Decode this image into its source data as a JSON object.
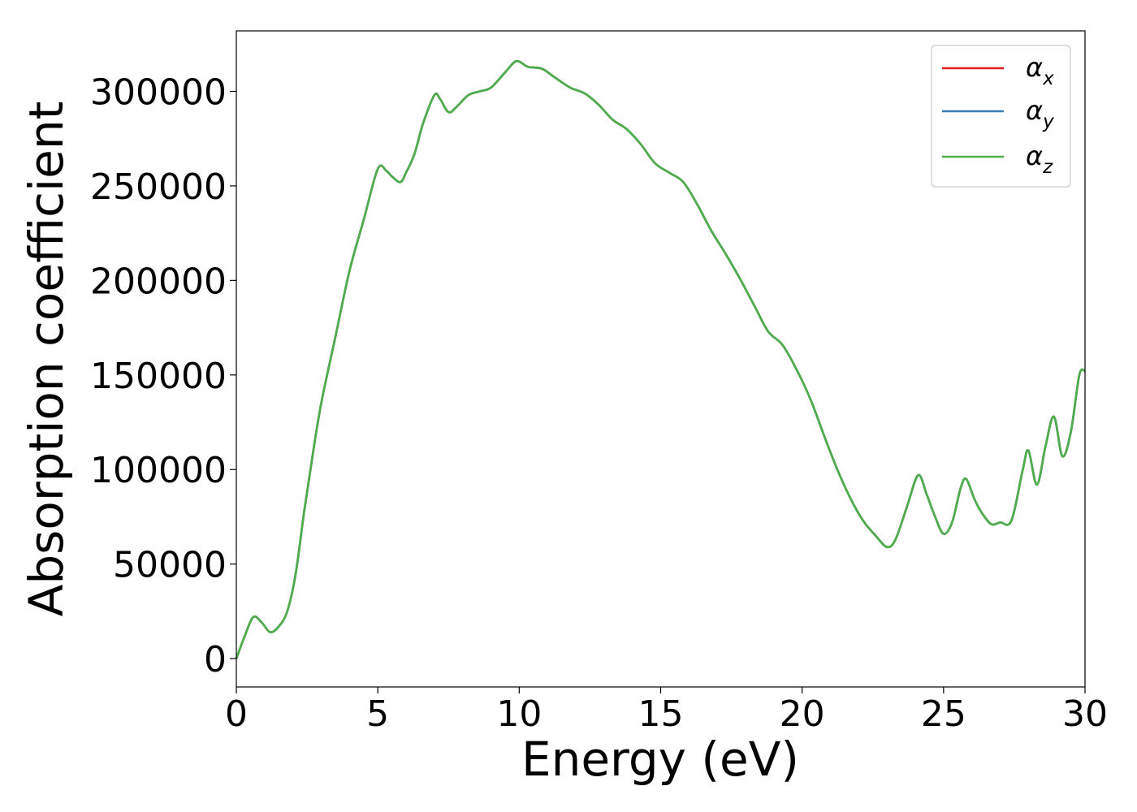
{
  "chart_data": {
    "type": "line",
    "title": "",
    "xlabel": "Energy (eV)",
    "ylabel": "Absorption coefficient",
    "xlim": [
      0,
      30
    ],
    "ylim": [
      -15000,
      332000
    ],
    "xticks": [
      0,
      5,
      10,
      15,
      20,
      25,
      30
    ],
    "yticks": [
      0,
      50000,
      100000,
      150000,
      200000,
      250000,
      300000
    ],
    "grid": false,
    "legend_position": "top-right",
    "series": [
      {
        "name": "αx",
        "legend": {
          "base": "α",
          "sub": "x"
        },
        "color": "#e41a1c",
        "x": [
          0,
          0.3,
          0.6,
          0.9,
          1.2,
          1.5,
          1.8,
          2.1,
          2.4,
          2.7,
          3.0,
          3.5,
          4.0,
          4.5,
          5.0,
          5.3,
          5.5,
          5.8,
          6.0,
          6.3,
          6.6,
          7.0,
          7.2,
          7.5,
          7.8,
          8.2,
          8.6,
          9.0,
          9.5,
          9.9,
          10.3,
          10.8,
          11.2,
          11.8,
          12.3,
          12.8,
          13.3,
          13.8,
          14.3,
          14.8,
          15.3,
          15.8,
          16.3,
          16.8,
          17.3,
          17.8,
          18.3,
          18.8,
          19.3,
          19.8,
          20.3,
          20.8,
          21.3,
          21.8,
          22.2,
          22.6,
          23.0,
          23.3,
          23.7,
          24.1,
          24.4,
          24.7,
          25.0,
          25.3,
          25.6,
          25.8,
          26.1,
          26.4,
          26.7,
          27.0,
          27.4,
          27.8,
          28.0,
          28.3,
          28.6,
          28.9,
          29.2,
          29.5,
          29.8,
          30.0
        ],
        "values": [
          0,
          12000,
          22000,
          19000,
          14000,
          17000,
          25000,
          45000,
          78000,
          108000,
          135000,
          170000,
          205000,
          232000,
          259000,
          258000,
          255000,
          252000,
          257000,
          267000,
          283000,
          298000,
          296000,
          289000,
          292000,
          298000,
          300000,
          302000,
          310000,
          316000,
          313000,
          312000,
          308000,
          302000,
          299000,
          293000,
          285000,
          280000,
          272000,
          262000,
          257000,
          252000,
          240000,
          226000,
          214000,
          201000,
          187000,
          173000,
          166000,
          153000,
          137000,
          117000,
          98000,
          82000,
          72000,
          65000,
          59000,
          63000,
          80000,
          97000,
          87000,
          75000,
          66000,
          72000,
          90000,
          95000,
          84000,
          76000,
          71000,
          72000,
          73000,
          100000,
          110000,
          92000,
          112000,
          128000,
          107000,
          120000,
          150000,
          152000
        ]
      },
      {
        "name": "αy",
        "legend": {
          "base": "α",
          "sub": "y"
        },
        "color": "#377eb8",
        "x": [
          0,
          0.3,
          0.6,
          0.9,
          1.2,
          1.5,
          1.8,
          2.1,
          2.4,
          2.7,
          3.0,
          3.5,
          4.0,
          4.5,
          5.0,
          5.3,
          5.5,
          5.8,
          6.0,
          6.3,
          6.6,
          7.0,
          7.2,
          7.5,
          7.8,
          8.2,
          8.6,
          9.0,
          9.5,
          9.9,
          10.3,
          10.8,
          11.2,
          11.8,
          12.3,
          12.8,
          13.3,
          13.8,
          14.3,
          14.8,
          15.3,
          15.8,
          16.3,
          16.8,
          17.3,
          17.8,
          18.3,
          18.8,
          19.3,
          19.8,
          20.3,
          20.8,
          21.3,
          21.8,
          22.2,
          22.6,
          23.0,
          23.3,
          23.7,
          24.1,
          24.4,
          24.7,
          25.0,
          25.3,
          25.6,
          25.8,
          26.1,
          26.4,
          26.7,
          27.0,
          27.4,
          27.8,
          28.0,
          28.3,
          28.6,
          28.9,
          29.2,
          29.5,
          29.8,
          30.0
        ],
        "values": [
          0,
          12000,
          22000,
          19000,
          14000,
          17000,
          25000,
          45000,
          78000,
          108000,
          135000,
          170000,
          205000,
          232000,
          259000,
          258000,
          255000,
          252000,
          257000,
          267000,
          283000,
          298000,
          296000,
          289000,
          292000,
          298000,
          300000,
          302000,
          310000,
          316000,
          313000,
          312000,
          308000,
          302000,
          299000,
          293000,
          285000,
          280000,
          272000,
          262000,
          257000,
          252000,
          240000,
          226000,
          214000,
          201000,
          187000,
          173000,
          166000,
          153000,
          137000,
          117000,
          98000,
          82000,
          72000,
          65000,
          59000,
          63000,
          80000,
          97000,
          87000,
          75000,
          66000,
          72000,
          90000,
          95000,
          84000,
          76000,
          71000,
          72000,
          73000,
          100000,
          110000,
          92000,
          112000,
          128000,
          107000,
          120000,
          150000,
          152000
        ]
      },
      {
        "name": "αz",
        "legend": {
          "base": "α",
          "sub": "z"
        },
        "color": "#4daf4a",
        "x": [
          0,
          0.3,
          0.6,
          0.9,
          1.2,
          1.5,
          1.8,
          2.1,
          2.4,
          2.7,
          3.0,
          3.5,
          4.0,
          4.5,
          5.0,
          5.3,
          5.5,
          5.8,
          6.0,
          6.3,
          6.6,
          7.0,
          7.2,
          7.5,
          7.8,
          8.2,
          8.6,
          9.0,
          9.5,
          9.9,
          10.3,
          10.8,
          11.2,
          11.8,
          12.3,
          12.8,
          13.3,
          13.8,
          14.3,
          14.8,
          15.3,
          15.8,
          16.3,
          16.8,
          17.3,
          17.8,
          18.3,
          18.8,
          19.3,
          19.8,
          20.3,
          20.8,
          21.3,
          21.8,
          22.2,
          22.6,
          23.0,
          23.3,
          23.7,
          24.1,
          24.4,
          24.7,
          25.0,
          25.3,
          25.6,
          25.8,
          26.1,
          26.4,
          26.7,
          27.0,
          27.4,
          27.8,
          28.0,
          28.3,
          28.6,
          28.9,
          29.2,
          29.5,
          29.8,
          30.0
        ],
        "values": [
          0,
          12000,
          22000,
          19000,
          14000,
          17000,
          25000,
          45000,
          78000,
          108000,
          135000,
          170000,
          205000,
          232000,
          259000,
          258000,
          255000,
          252000,
          257000,
          267000,
          283000,
          298000,
          296000,
          289000,
          292000,
          298000,
          300000,
          302000,
          310000,
          316000,
          313000,
          312000,
          308000,
          302000,
          299000,
          293000,
          285000,
          280000,
          272000,
          262000,
          257000,
          252000,
          240000,
          226000,
          214000,
          201000,
          187000,
          173000,
          166000,
          153000,
          137000,
          117000,
          98000,
          82000,
          72000,
          65000,
          59000,
          63000,
          80000,
          97000,
          87000,
          75000,
          66000,
          72000,
          90000,
          95000,
          84000,
          76000,
          71000,
          72000,
          73000,
          100000,
          110000,
          92000,
          112000,
          128000,
          107000,
          120000,
          150000,
          152000
        ]
      }
    ]
  }
}
